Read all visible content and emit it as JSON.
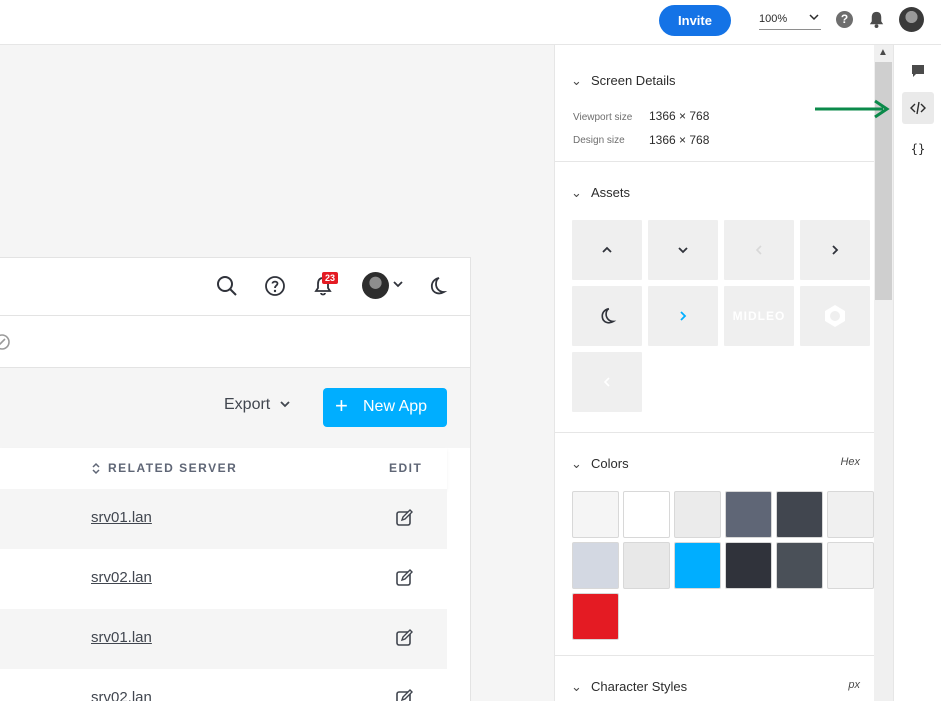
{
  "topbar": {
    "invite_label": "Invite",
    "zoom_value": "100%"
  },
  "app": {
    "notification_count": "23",
    "export_label": "Export",
    "new_app_label": "New App",
    "table": {
      "headers": {
        "server": "RELATED SERVER",
        "edit": "EDIT"
      },
      "rows": [
        {
          "server": "srv01.lan"
        },
        {
          "server": "srv02.lan"
        },
        {
          "server": "srv01.lan"
        },
        {
          "server": "srv02.lan"
        }
      ]
    }
  },
  "panel": {
    "screen_details": {
      "title": "Screen Details",
      "viewport_label": "Viewport size",
      "viewport_value": "1366 × 768",
      "design_label": "Design size",
      "design_value": "1366 × 768"
    },
    "assets": {
      "title": "Assets",
      "items": [
        "chevron-up-icon",
        "chevron-down-icon",
        "chevron-left-icon",
        "chevron-right-icon",
        "moon-icon",
        "chevron-right-blue-icon",
        "midleo-logo",
        "midleo-mark-logo",
        "chevron-left-faint-icon"
      ],
      "logo_text": "MIDLEO"
    },
    "colors": {
      "title": "Colors",
      "format": "Hex",
      "swatches": [
        "#f5f5f5",
        "#ffffff",
        "#ebebeb",
        "#5f6676",
        "#41464f",
        "#f0f0f0",
        "#d3d8e2",
        "#e8e8e8",
        "#00aeff",
        "#30333b",
        "#4a5058",
        "#f3f3f3",
        "#e41b23"
      ]
    },
    "character_styles": {
      "title": "Character Styles",
      "unit": "px"
    }
  },
  "colors": {
    "accent": "#1473e6",
    "primary_button": "#00aeff",
    "badge": "#e41b23",
    "annotation_arrow": "#0b8a4a"
  }
}
